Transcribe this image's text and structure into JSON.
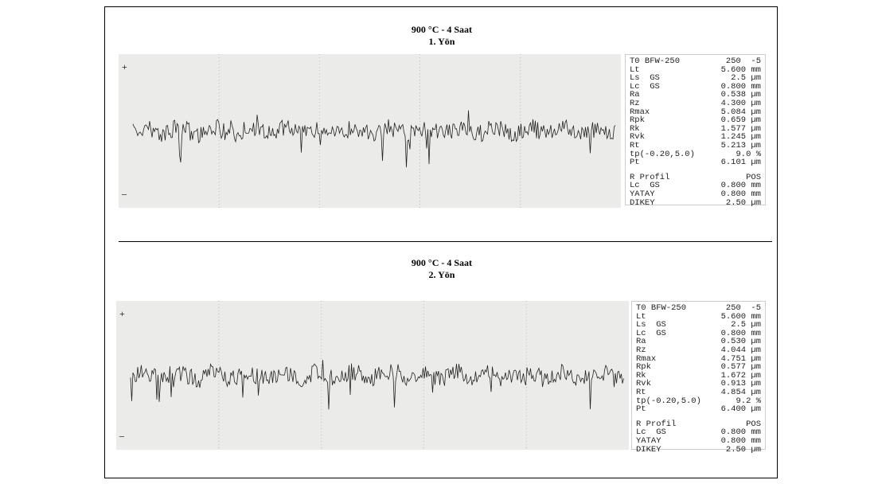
{
  "panels": [
    {
      "title": "900 °C - 4 Saat",
      "subtitle": "1. Yön",
      "readout": [
        [
          "T0 BFW-250",
          "250  -5"
        ],
        [
          "Lt",
          "5.600 mm"
        ],
        [
          "Ls  GS",
          "2.5 µm"
        ],
        [
          "Lc  GS",
          "0.800 mm"
        ],
        [
          "Ra",
          "0.538 µm"
        ],
        [
          "Rz",
          "4.300 µm"
        ],
        [
          "Rmax",
          "5.084 µm"
        ],
        [
          "Rpk",
          "0.659 µm"
        ],
        [
          "Rk",
          "1.577 µm"
        ],
        [
          "Rvk",
          "1.245 µm"
        ],
        [
          "Rt",
          "5.213 µm"
        ],
        [
          "tp(-0.20,5.0)",
          "9.0 %"
        ],
        [
          "Pt",
          "6.101 µm"
        ]
      ],
      "profile": [
        [
          "R Profil",
          "POS"
        ],
        [
          "Lc  GS",
          "0.800 mm"
        ],
        [
          "YATAY",
          "0.800 mm"
        ],
        [
          "DIKEY",
          "2.50 µm"
        ]
      ]
    },
    {
      "title": "900 °C - 4 Saat",
      "subtitle": "2. Yön",
      "readout": [
        [
          "T0 BFW-250",
          "250  -5"
        ],
        [
          "Lt",
          "5.600 mm"
        ],
        [
          "Ls  GS",
          "2.5 µm"
        ],
        [
          "Lc  GS",
          "0.800 mm"
        ],
        [
          "Ra",
          "0.530 µm"
        ],
        [
          "Rz",
          "4.044 µm"
        ],
        [
          "Rmax",
          "4.751 µm"
        ],
        [
          "Rpk",
          "0.577 µm"
        ],
        [
          "Rk",
          "1.672 µm"
        ],
        [
          "Rvk",
          "0.913 µm"
        ],
        [
          "Rt",
          "4.854 µm"
        ],
        [
          "tp(-0.20,5.0)",
          "9.2 %"
        ],
        [
          "Pt",
          "6.400 µm"
        ]
      ],
      "profile": [
        [
          "R Profil",
          "POS"
        ],
        [
          "Lc  GS",
          "0.800 mm"
        ],
        [
          "YATAY",
          "0.800 mm"
        ],
        [
          "DIKEY",
          "2.50 µm"
        ]
      ]
    }
  ]
}
